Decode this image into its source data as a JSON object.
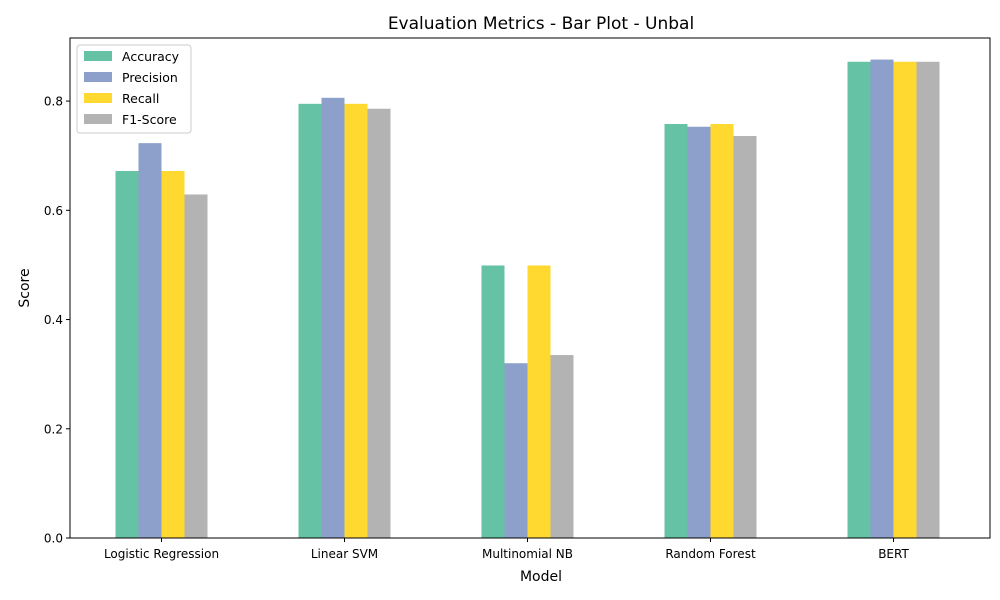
{
  "chart_data": {
    "type": "bar",
    "title": "Evaluation Metrics - Bar Plot - Unbal",
    "xlabel": "Model",
    "ylabel": "Score",
    "categories": [
      "Logistic Regression",
      "Linear SVM",
      "Multinomial NB",
      "Random Forest",
      "BERT"
    ],
    "series": [
      {
        "name": "Accuracy",
        "color": "#66c2a5",
        "values": [
          0.672,
          0.795,
          0.499,
          0.758,
          0.872
        ]
      },
      {
        "name": "Precision",
        "color": "#8da0cb",
        "values": [
          0.723,
          0.806,
          0.32,
          0.753,
          0.876
        ]
      },
      {
        "name": "Recall",
        "color": "#ffd92f",
        "values": [
          0.672,
          0.795,
          0.499,
          0.758,
          0.872
        ]
      },
      {
        "name": "F1-Score",
        "color": "#b3b3b3",
        "values": [
          0.629,
          0.786,
          0.335,
          0.736,
          0.872
        ]
      }
    ],
    "ylim": [
      0,
      0.9155
    ],
    "yticks": [
      0.0,
      0.2,
      0.4,
      0.6,
      0.8
    ],
    "ytick_labels": [
      "0.0",
      "0.2",
      "0.4",
      "0.6",
      "0.8"
    ],
    "grid": false,
    "legend_position": "top-left"
  }
}
